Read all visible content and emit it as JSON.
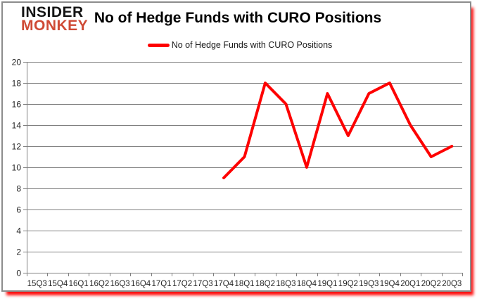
{
  "logo": {
    "line1": "INSIDER",
    "line2": "MONKEY",
    "color_line1": "#141414",
    "color_line2": "#cf4a35"
  },
  "header": {
    "title": "No of Hedge Funds with CURO Positions"
  },
  "legend": {
    "label": "No of Hedge Funds with CURO Positions",
    "swatch_color": "#fe0000"
  },
  "chart_data": {
    "type": "line",
    "title": "No of Hedge Funds with CURO Positions",
    "categories": [
      "15Q3",
      "15Q4",
      "16Q1",
      "16Q2",
      "16Q3",
      "16Q4",
      "17Q1",
      "17Q2",
      "17Q3",
      "17Q4",
      "18Q1",
      "18Q2",
      "18Q3",
      "18Q4",
      "19Q1",
      "19Q2",
      "19Q3",
      "19Q4",
      "20Q1",
      "20Q2",
      "20Q3"
    ],
    "series": [
      {
        "name": "No of Hedge Funds with CURO Positions",
        "color": "#fe0000",
        "values": [
          null,
          null,
          null,
          null,
          null,
          null,
          null,
          null,
          null,
          9,
          11,
          18,
          16,
          10,
          17,
          13,
          17,
          18,
          14,
          11,
          12
        ]
      }
    ],
    "ylim": [
      0,
      20
    ],
    "y_tick_step": 2,
    "grid": true,
    "legend_position": "top-center",
    "colors": {
      "gridline": "#808080",
      "axis": "#808080",
      "tick_label": "#262626"
    }
  }
}
